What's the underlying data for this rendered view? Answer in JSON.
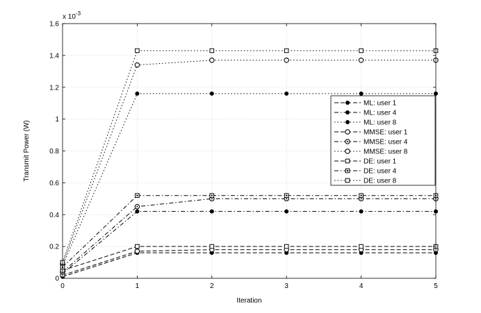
{
  "chart_data": {
    "type": "line",
    "xlabel": "Iteration",
    "ylabel": "Transmit Power (W)",
    "y_exponent_label": "x 10",
    "y_exponent_power": "-3",
    "x": [
      0,
      1,
      2,
      3,
      4,
      5
    ],
    "xlim": [
      0,
      5
    ],
    "ylim": [
      0,
      1.6
    ],
    "xticks": [
      "0",
      "1",
      "2",
      "3",
      "4",
      "5"
    ],
    "yticks": [
      "0",
      "0.2",
      "0.4",
      "0.6",
      "0.8",
      "1",
      "1.2",
      "1.4",
      "1.6"
    ],
    "grid": true,
    "legend_position": "right-center",
    "series": [
      {
        "name": "ML: user 1",
        "values": [
          0.01,
          0.16,
          0.16,
          0.16,
          0.16,
          0.16
        ],
        "dash": "6,3",
        "marker": "filled-circle"
      },
      {
        "name": "ML: user 4",
        "values": [
          0.03,
          0.42,
          0.42,
          0.42,
          0.42,
          0.42
        ],
        "dash": "6,3,1.5,3",
        "marker": "filled-circle"
      },
      {
        "name": "ML: user 8",
        "values": [
          0.08,
          1.16,
          1.16,
          1.16,
          1.16,
          1.16
        ],
        "dash": "1.5,3",
        "marker": "filled-circle"
      },
      {
        "name": "MMSE: user 1",
        "values": [
          0.02,
          0.17,
          0.18,
          0.18,
          0.18,
          0.18
        ],
        "dash": "6,3",
        "marker": "open-circle"
      },
      {
        "name": "MMSE: user 4",
        "values": [
          0.04,
          0.45,
          0.5,
          0.5,
          0.5,
          0.5
        ],
        "dash": "6,3,1.5,3",
        "marker": "dot-circle"
      },
      {
        "name": "MMSE: user 8",
        "values": [
          0.09,
          1.34,
          1.37,
          1.37,
          1.37,
          1.37
        ],
        "dash": "1.5,3",
        "marker": "open-circle"
      },
      {
        "name": "DE: user 1",
        "values": [
          0.05,
          0.2,
          0.2,
          0.2,
          0.2,
          0.2
        ],
        "dash": "6,3",
        "marker": "open-square"
      },
      {
        "name": "DE: user 4",
        "values": [
          0.07,
          0.52,
          0.52,
          0.52,
          0.52,
          0.52
        ],
        "dash": "6,3,1.5,3",
        "marker": "dot-square"
      },
      {
        "name": "DE: user 8",
        "values": [
          0.1,
          1.43,
          1.43,
          1.43,
          1.43,
          1.43
        ],
        "dash": "1.5,3",
        "marker": "open-square"
      }
    ]
  }
}
